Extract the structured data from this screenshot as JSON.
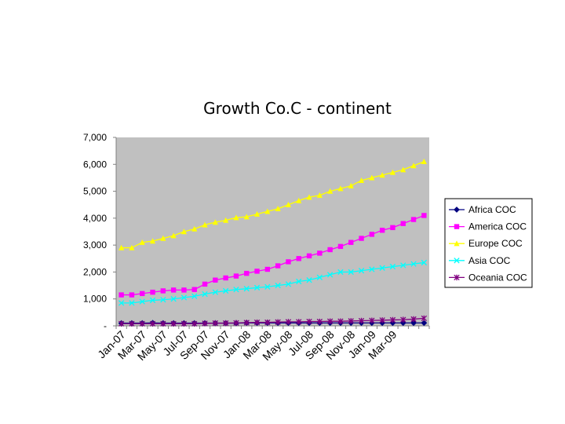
{
  "chart_data": {
    "type": "line",
    "title": "Growth Co.C - continent",
    "xlabel": "",
    "ylabel": "",
    "ylim": [
      0,
      7000
    ],
    "yticks": [
      {
        "value": 0,
        "label": "-"
      },
      {
        "value": 1000,
        "label": "1,000"
      },
      {
        "value": 2000,
        "label": "2,000"
      },
      {
        "value": 3000,
        "label": "3,000"
      },
      {
        "value": 4000,
        "label": "4,000"
      },
      {
        "value": 5000,
        "label": "5,000"
      },
      {
        "value": 6000,
        "label": "6,000"
      },
      {
        "value": 7000,
        "label": "7,000"
      }
    ],
    "xtick_labels": [
      "Jan-07",
      "Mar-07",
      "May-07",
      "Jul-07",
      "Sep-07",
      "Nov-07",
      "Jan-08",
      "Mar-08",
      "May-08",
      "Jul-08",
      "Sep-08",
      "Nov-08",
      "Jan-09",
      "Mar-09"
    ],
    "x": [
      "Jan-07",
      "Feb-07",
      "Mar-07",
      "Apr-07",
      "May-07",
      "Jun-07",
      "Jul-07",
      "Aug-07",
      "Sep-07",
      "Oct-07",
      "Nov-07",
      "Dec-07",
      "Jan-08",
      "Feb-08",
      "Mar-08",
      "Apr-08",
      "May-08",
      "Jun-08",
      "Jul-08",
      "Aug-08",
      "Sep-08",
      "Oct-08",
      "Nov-08",
      "Dec-08",
      "Jan-09",
      "Feb-09",
      "Mar-09",
      "Apr-09",
      "May-09",
      "Jun-09"
    ],
    "grid": false,
    "legend_position": "right",
    "plot_background": "#c0c0c0",
    "series": [
      {
        "name": "Africa COC",
        "color": "#000080",
        "marker": "diamond",
        "values": [
          100,
          100,
          100,
          110,
          100,
          100,
          100,
          100,
          100,
          100,
          100,
          100,
          110,
          110,
          110,
          110,
          110,
          110,
          110,
          110,
          110,
          110,
          110,
          110,
          110,
          110,
          110,
          110,
          110,
          110
        ]
      },
      {
        "name": "America COC",
        "color": "#ff00ff",
        "marker": "square",
        "values": [
          1150,
          1150,
          1200,
          1250,
          1300,
          1330,
          1330,
          1350,
          1550,
          1700,
          1780,
          1850,
          1950,
          2030,
          2100,
          2230,
          2380,
          2500,
          2600,
          2700,
          2830,
          2950,
          3100,
          3250,
          3400,
          3550,
          3650,
          3800,
          3950,
          4100
        ]
      },
      {
        "name": "Europe COC",
        "color": "#ffff00",
        "marker": "triangle",
        "values": [
          2900,
          2900,
          3100,
          3150,
          3250,
          3350,
          3500,
          3600,
          3750,
          3850,
          3920,
          4020,
          4050,
          4150,
          4250,
          4350,
          4500,
          4650,
          4780,
          4850,
          5000,
          5100,
          5200,
          5400,
          5500,
          5600,
          5700,
          5800,
          5950,
          6100
        ]
      },
      {
        "name": "Asia COC",
        "color": "#00ffff",
        "marker": "x",
        "values": [
          850,
          850,
          900,
          950,
          970,
          1000,
          1050,
          1100,
          1180,
          1250,
          1300,
          1350,
          1380,
          1420,
          1450,
          1500,
          1550,
          1650,
          1700,
          1800,
          1900,
          2000,
          2000,
          2050,
          2100,
          2150,
          2200,
          2250,
          2300,
          2350
        ]
      },
      {
        "name": "Oceania COC",
        "color": "#800080",
        "marker": "star",
        "values": [
          80,
          80,
          80,
          80,
          80,
          80,
          80,
          80,
          90,
          100,
          100,
          110,
          120,
          130,
          130,
          140,
          150,
          150,
          160,
          160,
          170,
          170,
          180,
          190,
          200,
          210,
          220,
          230,
          250,
          280
        ]
      }
    ]
  }
}
